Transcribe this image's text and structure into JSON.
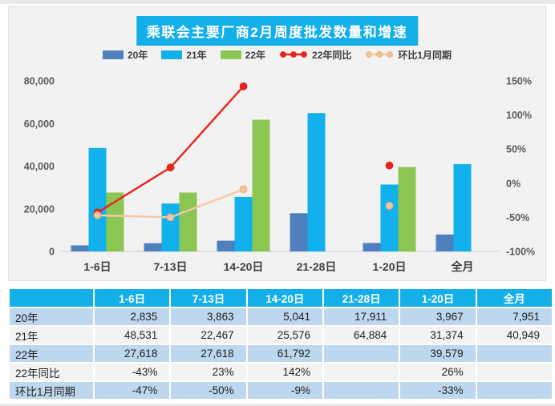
{
  "window": {
    "bg": "#FFFFFF",
    "edge_strip_color": "#E9E9E9"
  },
  "chart": {
    "title": "乘联会主要厂商2月周度批发数量和增速",
    "accent": "#14AFE8",
    "panel_bg": "#F2F2F2",
    "legend": [
      {
        "label": "20年",
        "type": "rect",
        "color": "#4E80BE"
      },
      {
        "label": "21年",
        "type": "rect",
        "color": "#12B1EC"
      },
      {
        "label": "22年",
        "type": "rect",
        "color": "#8CC652"
      },
      {
        "label": "22年同比",
        "type": "line",
        "color": "#E8231D",
        "marker_fill": "#E8231D",
        "marker_stroke": "#E8231D"
      },
      {
        "label": "环比1月同期",
        "type": "line",
        "color": "#F5C9A4",
        "marker_fill": "#F2C49E",
        "marker_stroke": "#E9AC7D"
      }
    ]
  },
  "chart_data": {
    "type": "bar+line combo",
    "categories": [
      "1-6日",
      "7-13日",
      "14-20日",
      "21-28日",
      "1-20日",
      "全月"
    ],
    "series": [
      {
        "name": "20年",
        "type": "bar",
        "axis": "left",
        "color": "#4E80BE",
        "values": [
          2835,
          3863,
          5041,
          17911,
          3967,
          7951
        ]
      },
      {
        "name": "21年",
        "type": "bar",
        "axis": "left",
        "color": "#12B1EC",
        "values": [
          48531,
          22467,
          25576,
          64884,
          31374,
          40949
        ]
      },
      {
        "name": "22年",
        "type": "bar",
        "axis": "left",
        "color": "#8CC652",
        "values": [
          27618,
          27618,
          61792,
          null,
          39579,
          null
        ]
      },
      {
        "name": "22年同比",
        "type": "line",
        "axis": "right",
        "color": "#E8231D",
        "marker_fill": "#E8231D",
        "marker_stroke": "#E8231D",
        "values": [
          -43,
          23,
          142,
          null,
          26,
          null
        ]
      },
      {
        "name": "环比1月同期",
        "type": "line",
        "axis": "right",
        "color": "#F5C9A4",
        "marker_fill": "#F2C49E",
        "marker_stroke": "#E9AC7D",
        "values": [
          -47,
          -50,
          -9,
          null,
          -33,
          null
        ]
      }
    ],
    "left_axis": {
      "labels": [
        "0",
        "20,000",
        "40,000",
        "60,000",
        "80,000"
      ],
      "values": [
        0,
        20000,
        40000,
        60000,
        80000
      ],
      "min": 0,
      "max": 80000
    },
    "right_axis": {
      "labels": [
        "-100%",
        "-50%",
        "0%",
        "50%",
        "100%",
        "150%"
      ],
      "values": [
        -100,
        -50,
        0,
        50,
        100,
        150
      ],
      "min": -100,
      "max": 150
    },
    "grid": false,
    "legend_position": "top",
    "title": "乘联会主要厂商2月周度批发数量和增速"
  },
  "table": {
    "header": [
      "",
      "1-6日",
      "7-13日",
      "14-20日",
      "21-28日",
      "1-20日",
      "全月"
    ],
    "rows": [
      {
        "label": "20年",
        "values": [
          "2,835",
          "3,863",
          "5,041",
          "17,911",
          "3,967",
          "7,951"
        ]
      },
      {
        "label": "21年",
        "values": [
          "48,531",
          "22,467",
          "25,576",
          "64,884",
          "31,374",
          "40,949"
        ]
      },
      {
        "label": "22年",
        "values": [
          "27,618",
          "27,618",
          "61,792",
          "",
          "39,579",
          ""
        ]
      },
      {
        "label": "22年同比",
        "values": [
          "-43%",
          "23%",
          "142%",
          "",
          "26%",
          ""
        ]
      },
      {
        "label": "环比1月同期",
        "values": [
          "-47%",
          "-50%",
          "-9%",
          "",
          "-33%",
          ""
        ]
      }
    ],
    "row_colors": [
      "#BDD7EE",
      "#F3F3F3"
    ]
  }
}
